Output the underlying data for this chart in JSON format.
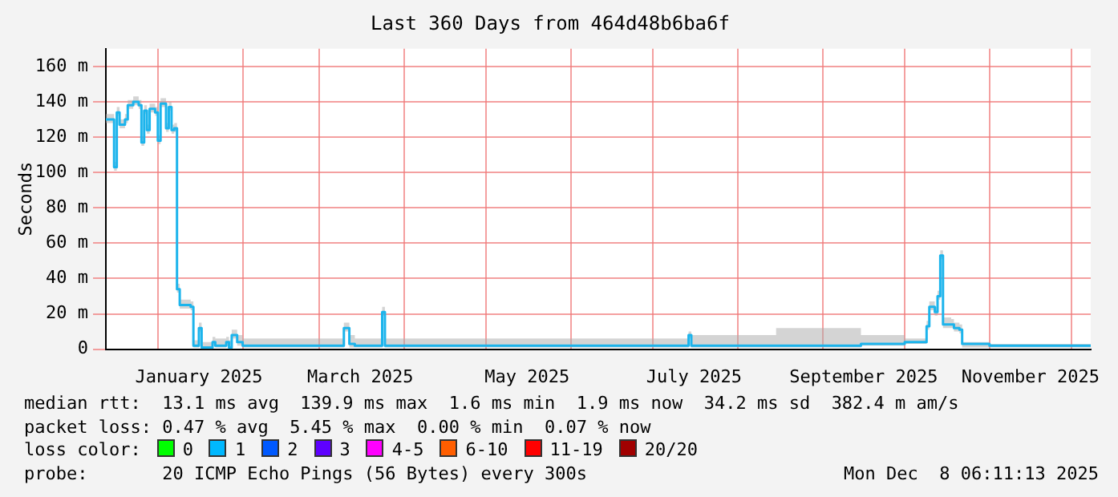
{
  "chart_data": {
    "type": "step",
    "title": "Last 360 Days from 464d48b6ba6f",
    "ylabel": "Seconds",
    "x": [
      "2024-12-13",
      "2024-12-16",
      "2024-12-17",
      "2024-12-18",
      "2024-12-20",
      "2024-12-21",
      "2024-12-23",
      "2024-12-25",
      "2024-12-26",
      "2024-12-27",
      "2024-12-28",
      "2024-12-29",
      "2024-12-31",
      "2025-01-01",
      "2025-01-02",
      "2025-01-04",
      "2025-01-05",
      "2025-01-06",
      "2025-01-07",
      "2025-01-08",
      "2025-01-09",
      "2025-01-13",
      "2025-01-14",
      "2025-01-16",
      "2025-01-17",
      "2025-01-21",
      "2025-01-22",
      "2025-01-26",
      "2025-01-27",
      "2025-01-28",
      "2025-01-30",
      "2025-02-01",
      "2025-03-10",
      "2025-03-12",
      "2025-03-14",
      "2025-03-24",
      "2025-03-25",
      "2025-05-15",
      "2025-07-14",
      "2025-07-15",
      "2025-08-15",
      "2025-09-15",
      "2025-10-01",
      "2025-10-09",
      "2025-10-10",
      "2025-10-12",
      "2025-10-13",
      "2025-10-14",
      "2025-10-15",
      "2025-10-18",
      "2025-10-19",
      "2025-10-21",
      "2025-10-22",
      "2025-11-01",
      "2025-12-08"
    ],
    "series": [
      {
        "color": "#1cb4ec",
        "values": [
          130,
          103,
          134,
          127,
          130,
          138,
          140,
          138,
          117,
          135,
          124,
          136,
          134,
          118,
          139,
          125,
          137,
          124,
          125,
          34,
          25,
          24,
          2,
          12,
          1,
          4,
          2,
          4,
          1,
          8,
          4,
          2,
          12,
          3,
          2,
          21,
          2,
          2,
          8,
          2,
          2,
          3,
          4,
          13,
          24,
          21,
          30,
          53,
          14,
          14,
          12,
          11,
          3,
          2,
          2
        ],
        "lower": [
          128,
          101,
          132,
          125,
          128,
          136,
          138,
          136,
          115,
          133,
          122,
          134,
          132,
          116,
          137,
          123,
          135,
          122,
          123,
          32,
          23,
          22,
          1,
          10,
          0,
          2,
          1,
          2,
          0,
          6,
          2,
          1,
          10,
          1,
          1,
          19,
          1,
          1,
          6,
          1,
          1,
          2,
          3,
          11,
          22,
          19,
          28,
          51,
          12,
          12,
          10,
          9,
          1,
          1,
          1
        ],
        "upper": [
          133,
          106,
          137,
          130,
          133,
          141,
          143,
          141,
          120,
          138,
          127,
          139,
          137,
          121,
          142,
          128,
          140,
          127,
          128,
          37,
          28,
          27,
          5,
          15,
          4,
          7,
          6,
          7,
          5,
          11,
          8,
          6,
          15,
          8,
          6,
          24,
          6,
          6,
          10,
          8,
          12,
          8,
          6,
          16,
          27,
          24,
          33,
          56,
          18,
          17,
          15,
          14,
          4,
          3,
          3
        ]
      }
    ],
    "xlim": [
      "2024-12-13",
      "2025-12-08"
    ],
    "xticks": [
      {
        "value": "2025-01-01",
        "label": null
      },
      {
        "value": "2025-01-16",
        "label": "January 2025"
      },
      {
        "value": "2025-02-01",
        "label": null
      },
      {
        "value": "2025-03-01",
        "label": null
      },
      {
        "value": "2025-03-16",
        "label": "March 2025"
      },
      {
        "value": "2025-04-01",
        "label": null
      },
      {
        "value": "2025-05-01",
        "label": null
      },
      {
        "value": "2025-05-16",
        "label": "May 2025"
      },
      {
        "value": "2025-06-01",
        "label": null
      },
      {
        "value": "2025-07-01",
        "label": null
      },
      {
        "value": "2025-07-16",
        "label": "July 2025"
      },
      {
        "value": "2025-08-01",
        "label": null
      },
      {
        "value": "2025-09-01",
        "label": null
      },
      {
        "value": "2025-09-16",
        "label": "September 2025"
      },
      {
        "value": "2025-10-01",
        "label": null
      },
      {
        "value": "2025-11-01",
        "label": null
      },
      {
        "value": "2025-11-16",
        "label": "November 2025"
      },
      {
        "value": "2025-12-01",
        "label": null
      }
    ],
    "ylim": [
      0,
      170
    ],
    "yticks": [
      {
        "value": 0,
        "label": "0"
      },
      {
        "value": 20,
        "label": "20 m"
      },
      {
        "value": 40,
        "label": "40 m"
      },
      {
        "value": 60,
        "label": "60 m"
      },
      {
        "value": 80,
        "label": "80 m"
      },
      {
        "value": 100,
        "label": "100 m"
      },
      {
        "value": 120,
        "label": "120 m"
      },
      {
        "value": 140,
        "label": "140 m"
      },
      {
        "value": 160,
        "label": "160 m"
      }
    ],
    "grid": true,
    "legend": false,
    "annotations": [
      "median rtt:  13.1 ms avg  139.9 ms max  1.6 ms min  1.9 ms now  34.2 ms sd  382.4 m am/s",
      "packet loss: 0.47 % avg  5.45 % max  0.00 % min  0.07 % now",
      "loss color:",
      "0",
      "1",
      "2",
      "3",
      "4-5",
      "6-10",
      "11-19",
      "20/20",
      "probe:       20 ICMP Echo Pings (56 Bytes) every 300s",
      "Mon Dec  8 06:11:13 2025"
    ]
  }
}
